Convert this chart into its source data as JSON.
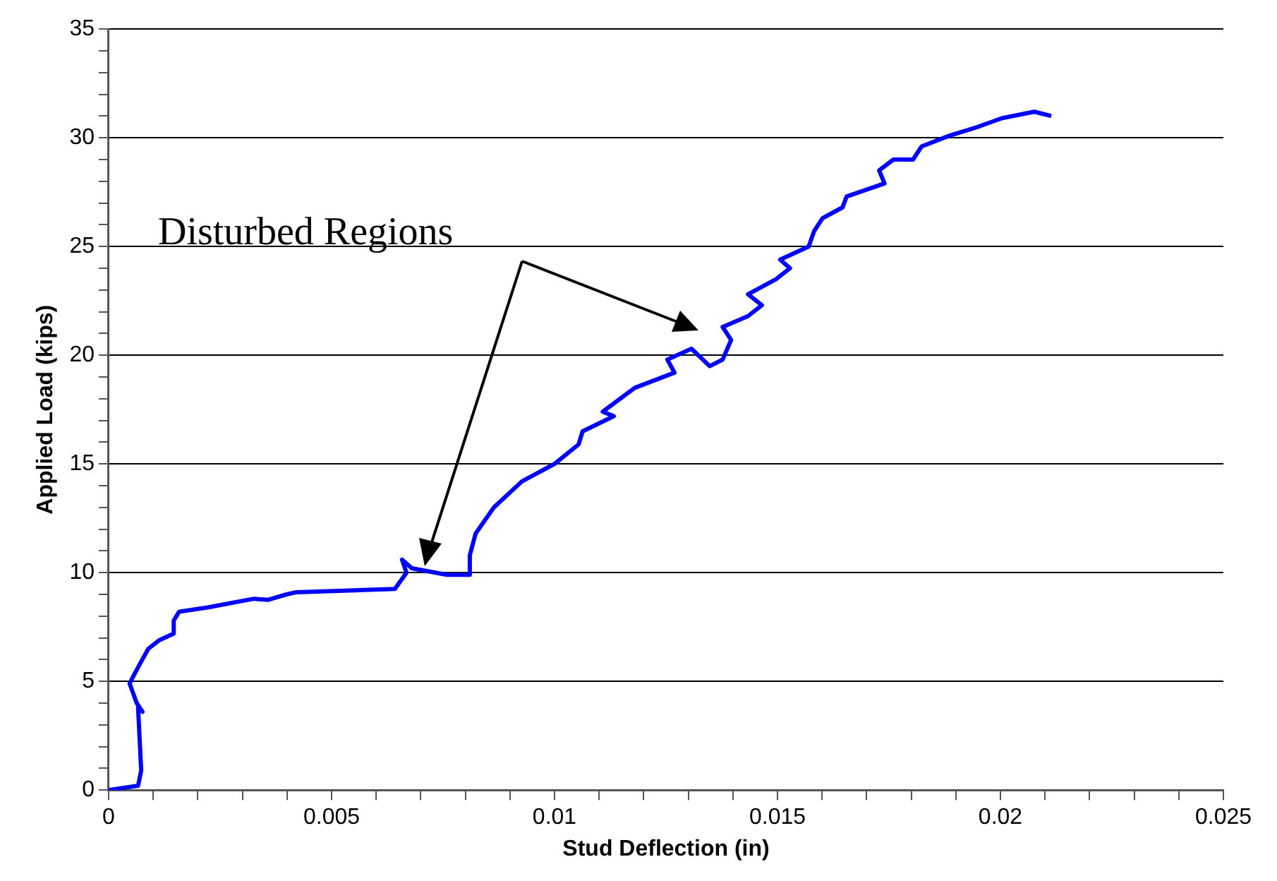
{
  "chart_data": {
    "type": "line",
    "xlabel": "Stud Deflection (in)",
    "ylabel": "Applied Load (kips)",
    "annotations": [
      "Disturbed Regions"
    ],
    "xlim": [
      0,
      0.025
    ],
    "xticks": [
      0,
      {
        "value": 0.001,
        "label": null
      },
      {
        "value": 0.002,
        "label": null
      },
      {
        "value": 0.003,
        "label": null
      },
      {
        "value": 0.004,
        "label": null
      },
      0.005,
      {
        "value": 0.006,
        "label": null
      },
      {
        "value": 0.007,
        "label": null
      },
      {
        "value": 0.008,
        "label": null
      },
      {
        "value": 0.009,
        "label": null
      },
      0.01,
      {
        "value": 0.011,
        "label": null
      },
      {
        "value": 0.012,
        "label": null
      },
      {
        "value": 0.013,
        "label": null
      },
      {
        "value": 0.014,
        "label": null
      },
      0.015,
      {
        "value": 0.016,
        "label": null
      },
      {
        "value": 0.017,
        "label": null
      },
      {
        "value": 0.018,
        "label": null
      },
      {
        "value": 0.019,
        "label": null
      },
      0.02,
      {
        "value": 0.021,
        "label": null
      },
      {
        "value": 0.022,
        "label": null
      },
      {
        "value": 0.023,
        "label": null
      },
      {
        "value": 0.024,
        "label": null
      },
      0.025
    ],
    "ylim": [
      0,
      35
    ],
    "yticks": [
      0,
      {
        "value": 1,
        "label": null
      },
      {
        "value": 2,
        "label": null
      },
      {
        "value": 3,
        "label": null
      },
      {
        "value": 4,
        "label": null
      },
      5,
      {
        "value": 6,
        "label": null
      },
      {
        "value": 7,
        "label": null
      },
      {
        "value": 8,
        "label": null
      },
      {
        "value": 9,
        "label": null
      },
      10,
      {
        "value": 11,
        "label": null
      },
      {
        "value": 12,
        "label": null
      },
      {
        "value": 13,
        "label": null
      },
      {
        "value": 14,
        "label": null
      },
      15,
      {
        "value": 16,
        "label": null
      },
      {
        "value": 17,
        "label": null
      },
      {
        "value": 18,
        "label": null
      },
      {
        "value": 19,
        "label": null
      },
      20,
      {
        "value": 21,
        "label": null
      },
      {
        "value": 22,
        "label": null
      },
      {
        "value": 23,
        "label": null
      },
      {
        "value": 24,
        "label": null
      },
      25,
      {
        "value": 26,
        "label": null
      },
      {
        "value": 27,
        "label": null
      },
      {
        "value": 28,
        "label": null
      },
      {
        "value": 29,
        "label": null
      },
      30,
      {
        "value": 31,
        "label": null
      },
      {
        "value": 32,
        "label": null
      },
      {
        "value": 33,
        "label": null
      },
      {
        "value": 34,
        "label": null
      },
      35
    ],
    "grid": "y",
    "legend": false,
    "marker": "none",
    "line_style": "solid",
    "series": [
      {
        "color": "#0000ff",
        "x": [
          0,
          0.00066,
          0.00073,
          0.00066,
          0.00076,
          0.00063,
          0.00047,
          0.00057,
          0.0007,
          0.00089,
          0.00114,
          0.00146,
          0.00146,
          0.00158,
          0.00222,
          0.00326,
          0.00358,
          0.00399,
          0.00421,
          0.00642,
          0.00668,
          0.00658,
          0.0068,
          0.00759,
          0.00807,
          0.0081,
          0.00823,
          0.00864,
          0.00927,
          0.01,
          0.01054,
          0.01063,
          0.01133,
          0.01108,
          0.0118,
          0.01269,
          0.01253,
          0.01307,
          0.01348,
          0.01377,
          0.01396,
          0.01377,
          0.01434,
          0.01465,
          0.01434,
          0.01497,
          0.01528,
          0.01506,
          0.0157,
          0.01582,
          0.01601,
          0.01646,
          0.01655,
          0.0174,
          0.01728,
          0.0176,
          0.01804,
          0.01823,
          0.01886,
          0.01949,
          0.02003,
          0.02076,
          0.02114
        ],
        "values": [
          0,
          0.2,
          0.9,
          3.8,
          3.6,
          4.0,
          4.9,
          5.3,
          5.8,
          6.5,
          6.9,
          7.2,
          7.8,
          8.2,
          8.4,
          8.8,
          8.75,
          9.0,
          9.1,
          9.25,
          10.0,
          10.6,
          10.2,
          9.9,
          9.9,
          10.8,
          11.8,
          13.0,
          14.2,
          15.0,
          15.9,
          16.5,
          17.2,
          17.4,
          18.5,
          19.2,
          19.8,
          20.3,
          19.5,
          19.8,
          20.7,
          21.3,
          21.8,
          22.3,
          22.8,
          23.5,
          24.0,
          24.4,
          25.0,
          25.7,
          26.3,
          26.8,
          27.3,
          27.9,
          28.5,
          29.0,
          29.0,
          29.6,
          30.1,
          30.5,
          30.9,
          31.2,
          31.0
        ]
      }
    ]
  }
}
